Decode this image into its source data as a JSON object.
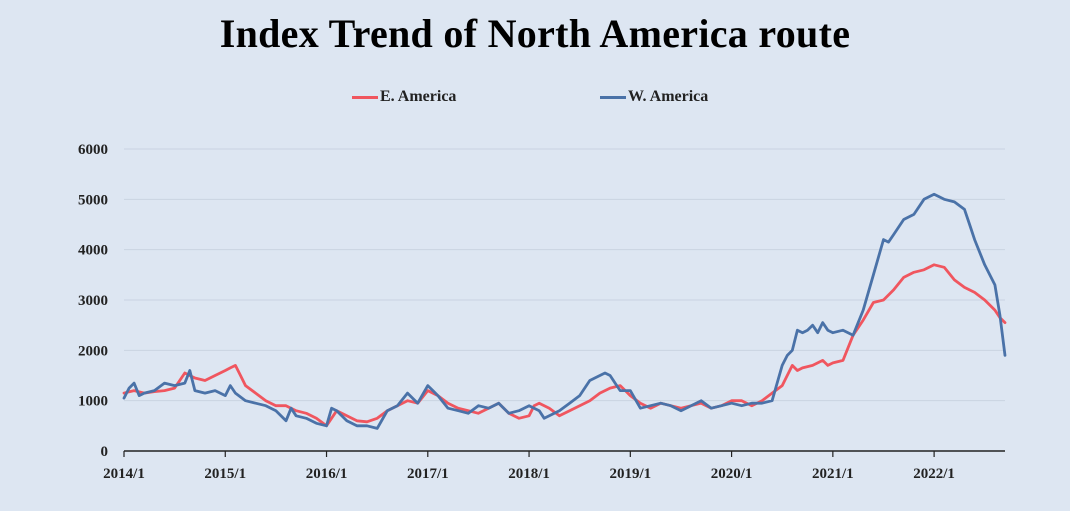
{
  "chart_data": {
    "type": "line",
    "title": "Index Trend of North America route",
    "xlabel": "",
    "ylabel": "",
    "ylim": [
      0,
      6000
    ],
    "yticks": [
      0,
      1000,
      2000,
      3000,
      4000,
      5000,
      6000
    ],
    "xticks": [
      "2014/1",
      "2015/1",
      "2016/1",
      "2017/1",
      "2018/1",
      "2019/1",
      "2020/1",
      "2021/1",
      "2022/1"
    ],
    "xlim": [
      2014.0,
      2022.7
    ],
    "grid": "horizontal",
    "legend_position": "top",
    "colors": {
      "e_america": "#f0565f",
      "w_america": "#4a72a8",
      "background": "#dde6f2"
    },
    "series": [
      {
        "name": "E. America",
        "color": "#f0565f",
        "x": [
          2014.0,
          2014.1,
          2014.2,
          2014.3,
          2014.4,
          2014.5,
          2014.6,
          2014.7,
          2014.8,
          2014.9,
          2015.0,
          2015.05,
          2015.1,
          2015.15,
          2015.2,
          2015.3,
          2015.4,
          2015.5,
          2015.6,
          2015.7,
          2015.8,
          2015.9,
          2016.0,
          2016.1,
          2016.2,
          2016.3,
          2016.4,
          2016.5,
          2016.6,
          2016.7,
          2016.8,
          2016.9,
          2017.0,
          2017.1,
          2017.2,
          2017.3,
          2017.4,
          2017.5,
          2017.6,
          2017.7,
          2017.8,
          2017.9,
          2018.0,
          2018.05,
          2018.1,
          2018.2,
          2018.3,
          2018.4,
          2018.5,
          2018.6,
          2018.7,
          2018.8,
          2018.9,
          2018.95,
          2019.0,
          2019.1,
          2019.2,
          2019.3,
          2019.4,
          2019.5,
          2019.6,
          2019.7,
          2019.8,
          2019.9,
          2020.0,
          2020.1,
          2020.2,
          2020.3,
          2020.4,
          2020.5,
          2020.6,
          2020.65,
          2020.7,
          2020.8,
          2020.9,
          2020.95,
          2021.0,
          2021.1,
          2021.2,
          2021.3,
          2021.4,
          2021.5,
          2021.6,
          2021.7,
          2021.8,
          2021.9,
          2022.0,
          2022.1,
          2022.2,
          2022.3,
          2022.4,
          2022.5,
          2022.6,
          2022.65,
          2022.7
        ],
        "values": [
          1150,
          1200,
          1150,
          1180,
          1200,
          1250,
          1550,
          1450,
          1400,
          1500,
          1600,
          1650,
          1700,
          1500,
          1300,
          1150,
          1000,
          900,
          900,
          800,
          750,
          650,
          500,
          800,
          700,
          600,
          580,
          650,
          800,
          900,
          1000,
          950,
          1200,
          1100,
          950,
          850,
          800,
          750,
          850,
          950,
          750,
          650,
          700,
          900,
          950,
          850,
          700,
          800,
          900,
          1000,
          1150,
          1250,
          1300,
          1200,
          1100,
          950,
          850,
          950,
          900,
          850,
          900,
          950,
          850,
          900,
          1000,
          1000,
          900,
          1000,
          1150,
          1300,
          1700,
          1600,
          1650,
          1700,
          1800,
          1700,
          1750,
          1800,
          2300,
          2600,
          2950,
          3000,
          3200,
          3450,
          3550,
          3600,
          3700,
          3650,
          3400,
          3250,
          3150,
          3000,
          2800,
          2650,
          2550
        ]
      },
      {
        "name": "W. America",
        "color": "#4a72a8",
        "x": [
          2014.0,
          2014.05,
          2014.1,
          2014.15,
          2014.2,
          2014.3,
          2014.4,
          2014.5,
          2014.6,
          2014.65,
          2014.7,
          2014.8,
          2014.9,
          2015.0,
          2015.05,
          2015.1,
          2015.2,
          2015.3,
          2015.4,
          2015.5,
          2015.6,
          2015.65,
          2015.7,
          2015.8,
          2015.9,
          2016.0,
          2016.05,
          2016.1,
          2016.2,
          2016.3,
          2016.4,
          2016.5,
          2016.6,
          2016.7,
          2016.8,
          2016.9,
          2017.0,
          2017.05,
          2017.1,
          2017.2,
          2017.3,
          2017.4,
          2017.5,
          2017.6,
          2017.7,
          2017.8,
          2017.9,
          2018.0,
          2018.1,
          2018.15,
          2018.2,
          2018.3,
          2018.4,
          2018.5,
          2018.6,
          2018.7,
          2018.75,
          2018.8,
          2018.85,
          2018.9,
          2019.0,
          2019.1,
          2019.2,
          2019.3,
          2019.4,
          2019.5,
          2019.6,
          2019.7,
          2019.8,
          2019.9,
          2020.0,
          2020.1,
          2020.2,
          2020.3,
          2020.4,
          2020.5,
          2020.55,
          2020.6,
          2020.65,
          2020.7,
          2020.75,
          2020.8,
          2020.85,
          2020.9,
          2020.95,
          2021.0,
          2021.1,
          2021.2,
          2021.3,
          2021.4,
          2021.5,
          2021.55,
          2021.6,
          2021.7,
          2021.8,
          2021.9,
          2022.0,
          2022.05,
          2022.1,
          2022.2,
          2022.3,
          2022.35,
          2022.4,
          2022.5,
          2022.6,
          2022.65,
          2022.7
        ],
        "values": [
          1050,
          1250,
          1350,
          1100,
          1150,
          1200,
          1350,
          1300,
          1350,
          1600,
          1200,
          1150,
          1200,
          1100,
          1300,
          1150,
          1000,
          950,
          900,
          800,
          600,
          850,
          700,
          650,
          550,
          500,
          850,
          800,
          600,
          500,
          500,
          450,
          800,
          900,
          1150,
          950,
          1300,
          1200,
          1100,
          850,
          800,
          750,
          900,
          850,
          950,
          750,
          800,
          900,
          800,
          650,
          700,
          800,
          950,
          1100,
          1400,
          1500,
          1550,
          1500,
          1350,
          1200,
          1200,
          850,
          900,
          950,
          900,
          800,
          900,
          1000,
          850,
          900,
          950,
          900,
          950,
          950,
          1000,
          1700,
          1900,
          2000,
          2400,
          2350,
          2400,
          2500,
          2350,
          2550,
          2400,
          2350,
          2400,
          2300,
          2800,
          3500,
          4200,
          4150,
          4300,
          4600,
          4700,
          5000,
          5100,
          5050,
          5000,
          4950,
          4800,
          4500,
          4200,
          3700,
          3300,
          2700,
          1900
        ]
      }
    ]
  }
}
